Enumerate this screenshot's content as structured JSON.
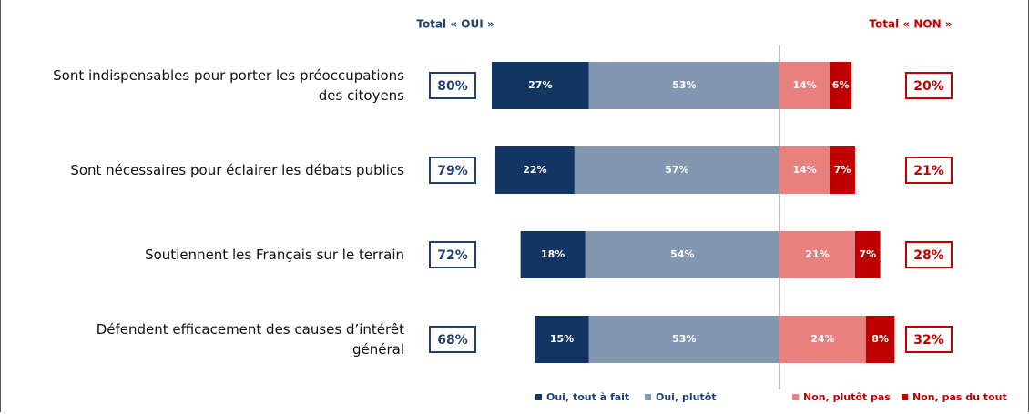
{
  "chart_data": {
    "type": "diverging_bar",
    "categories": [
      "Sont indispensables pour porter les préoccupations\ndes citoyens",
      "Sont nécessaires pour éclairer les débats publics",
      "Soutiennent les Français sur le terrain",
      "Défendent efficacement des causes d’intérêt\ngénéral"
    ],
    "series": [
      {
        "name": "Oui, tout à fait",
        "color": "#123563",
        "side": "left",
        "values": [
          27,
          22,
          18,
          15
        ],
        "value_labels": [
          "27%",
          "22%",
          "18%",
          "15%"
        ]
      },
      {
        "name": "Oui, plutôt",
        "color": "#8397b0",
        "side": "left",
        "values": [
          53,
          57,
          54,
          53
        ],
        "value_labels": [
          "53%",
          "57%",
          "54%",
          "53%"
        ]
      },
      {
        "name": "Non, plutôt pas",
        "color": "#e88080",
        "side": "right",
        "values": [
          14,
          14,
          21,
          24
        ],
        "value_labels": [
          "14%",
          "14%",
          "21%",
          "24%"
        ]
      },
      {
        "name": "Non, pas du tout",
        "color": "#c00000",
        "side": "right",
        "values": [
          6,
          7,
          7,
          8
        ],
        "value_labels": [
          "6%",
          "7%",
          "7%",
          "8%"
        ]
      }
    ],
    "totals": [
      {
        "title": "Total « OUI »",
        "color": "#1f3f6e",
        "side": "left",
        "values": [
          80,
          79,
          72,
          68
        ],
        "value_labels": [
          "80%",
          "79%",
          "72%",
          "68%"
        ]
      },
      {
        "title": "Total « NON »",
        "color": "#c00000",
        "side": "right",
        "values": [
          20,
          21,
          28,
          32
        ],
        "value_labels": [
          "20%",
          "21%",
          "28%",
          "32%"
        ]
      }
    ]
  }
}
